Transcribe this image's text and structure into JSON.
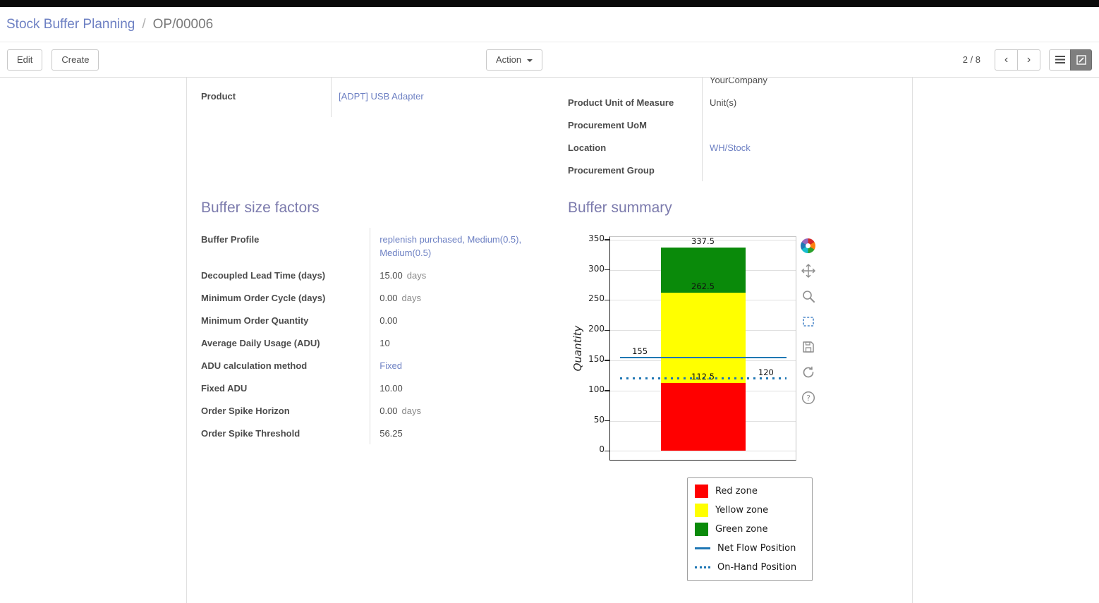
{
  "breadcrumb": {
    "parent": "Stock Buffer Planning",
    "separator": "/",
    "current": "OP/00006"
  },
  "control_panel": {
    "edit_label": "Edit",
    "create_label": "Create",
    "action_label": "Action",
    "pager_value": "2 / 8",
    "prev_icon": "‹",
    "next_icon": "›"
  },
  "form": {
    "clipped_top_field_value": "YourCompany",
    "product_label": "Product",
    "product_value": "[ADPT] USB Adapter",
    "right_fields": [
      {
        "label": "Product Unit of Measure",
        "value": "Unit(s)"
      },
      {
        "label": "Procurement UoM",
        "value": ""
      },
      {
        "label": "Location",
        "value": "WH/Stock"
      },
      {
        "label": "Procurement Group",
        "value": ""
      }
    ],
    "buffer_factors_title": "Buffer size factors",
    "buffer_factors": [
      {
        "label": "Buffer Profile",
        "value": "replenish purchased, Medium(0.5), Medium(0.5)"
      },
      {
        "label": "Decoupled Lead Time (days)",
        "value": "15.00",
        "suffix": "days"
      },
      {
        "label": "Minimum Order Cycle (days)",
        "value": "0.00",
        "suffix": "days"
      },
      {
        "label": "Minimum Order Quantity",
        "value": "0.00"
      },
      {
        "label": "Average Daily Usage (ADU)",
        "value": "10"
      },
      {
        "label": "ADU calculation method",
        "value": "Fixed"
      },
      {
        "label": "Fixed ADU",
        "value": "10.00"
      },
      {
        "label": "Order Spike Horizon",
        "value": "0.00",
        "suffix": "days"
      },
      {
        "label": "Order Spike Threshold",
        "value": "56.25"
      }
    ],
    "buffer_summary_title": "Buffer summary"
  },
  "chart_data": {
    "type": "bar",
    "title": "Buffer summary",
    "ylabel": "Quantity",
    "xlabel": "",
    "ylim": [
      -17,
      354.5
    ],
    "yticks": [
      0,
      50,
      100,
      150,
      200,
      250,
      300,
      350
    ],
    "grid": true,
    "bar": {
      "left_pct": 27.5,
      "width_pct": 45.5
    },
    "zones": [
      {
        "name": "Red zone",
        "from": 0,
        "to": 112.5,
        "color": "#ff0000"
      },
      {
        "name": "Yellow zone",
        "from": 112.5,
        "to": 262.5,
        "color": "#ffff00"
      },
      {
        "name": "Green zone",
        "from": 262.5,
        "to": 337.5,
        "color": "#0a8a0a"
      }
    ],
    "lines": [
      {
        "name": "Net Flow Position",
        "value": 155,
        "style": "solid",
        "color": "#1f77b4"
      },
      {
        "name": "On-Hand Position",
        "value": 120,
        "style": "dotted",
        "color": "#1f77b4"
      }
    ],
    "annotations": [
      {
        "text": "337.5",
        "x_pct": 50,
        "y": 337.5
      },
      {
        "text": "262.5",
        "x_pct": 50,
        "y": 262.5
      },
      {
        "text": "112.5",
        "x_pct": 50,
        "y": 112.5
      },
      {
        "text": "155",
        "x_pct": 16,
        "y": 155
      },
      {
        "text": "120",
        "x_pct": 84,
        "y": 120
      }
    ],
    "legend_position": "bottom-right",
    "legend": [
      {
        "label": "Red zone",
        "swatch": "rect",
        "color": "#ff0000"
      },
      {
        "label": "Yellow zone",
        "swatch": "rect",
        "color": "#ffff00"
      },
      {
        "label": "Green zone",
        "swatch": "rect",
        "color": "#0a8a0a"
      },
      {
        "label": "Net Flow Position",
        "swatch": "line",
        "color": "#1f77b4"
      },
      {
        "label": "On-Hand Position",
        "swatch": "dotted",
        "color": "#1f77b4"
      }
    ]
  },
  "colors": {
    "heading": "#7c7bad",
    "link": "#6d80c3",
    "topbar": "#0a0a0a",
    "net_flow_line": "#1f77b4"
  }
}
